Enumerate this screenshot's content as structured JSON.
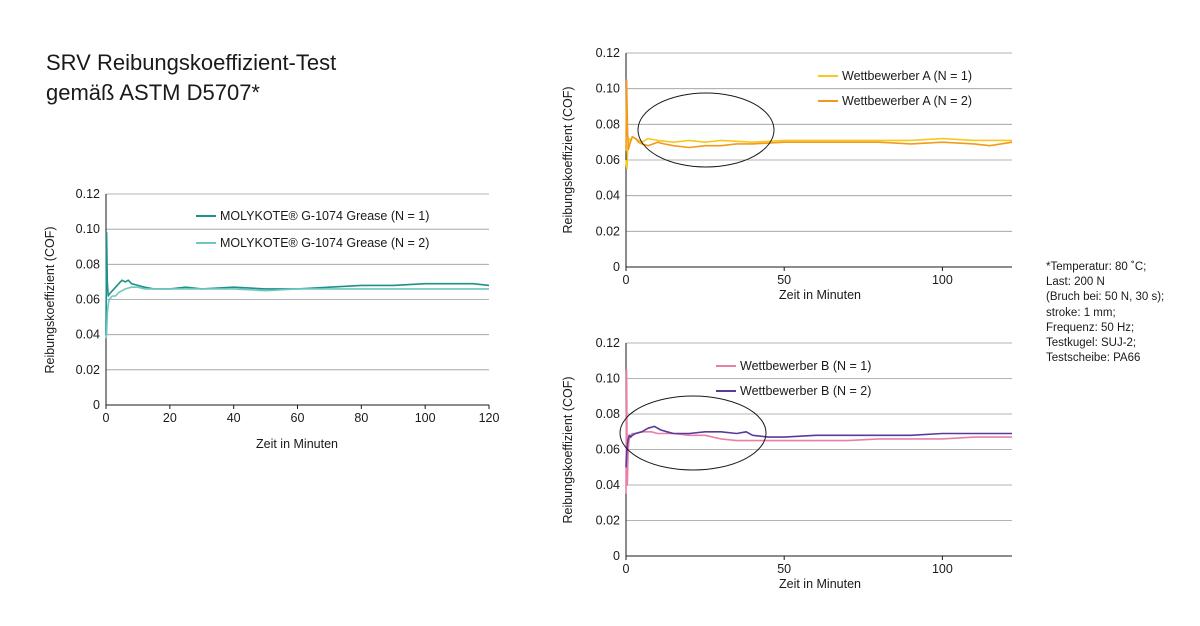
{
  "title": {
    "line1": "SRV Reibungskoeffizient-Test",
    "line2": "gemäß ASTM D5707*"
  },
  "conditions": [
    "*Temperatur: 80 ˚C;",
    "Last: 200 N",
    "(Bruch bei: 50 N, 30 s);",
    "stroke: 1 mm;",
    "Frequenz: 50 Hz;",
    "Testkugel: SUJ-2;",
    "Testscheibe: PA66"
  ],
  "chart_data": [
    {
      "type": "line",
      "xlabel": "Zeit in Minuten",
      "ylabel": "Reibungskoeffizient (COF)",
      "xlim": [
        0,
        120
      ],
      "ylim": [
        0,
        0.12
      ],
      "xticks": [
        0,
        20,
        40,
        60,
        80,
        100,
        120
      ],
      "yticks": [
        0,
        0.02,
        0.04,
        0.06,
        0.08,
        0.1,
        0.12
      ],
      "grid": "horizontal",
      "legend_position": "top-right",
      "series": [
        {
          "name": "MOLYKOTE® G-1074 Grease (N = 1)",
          "color": "#1e9188",
          "x": [
            0,
            0.2,
            0.4,
            0.7,
            1,
            1.5,
            2,
            3,
            4,
            5,
            6,
            7,
            8,
            10,
            12,
            15,
            20,
            25,
            30,
            40,
            50,
            60,
            70,
            80,
            90,
            100,
            110,
            115,
            120
          ],
          "y": [
            0.04,
            0.098,
            0.07,
            0.062,
            0.063,
            0.064,
            0.065,
            0.067,
            0.069,
            0.071,
            0.07,
            0.071,
            0.069,
            0.068,
            0.067,
            0.066,
            0.066,
            0.067,
            0.066,
            0.067,
            0.066,
            0.066,
            0.067,
            0.068,
            0.068,
            0.069,
            0.069,
            0.069,
            0.068
          ]
        },
        {
          "name": "MOLYKOTE® G-1074 Grease (N = 2)",
          "color": "#6fc7bf",
          "x": [
            0,
            0.2,
            0.4,
            0.7,
            1,
            1.5,
            2,
            3,
            4,
            5,
            6,
            8,
            10,
            12,
            15,
            20,
            25,
            30,
            40,
            50,
            60,
            70,
            80,
            90,
            100,
            110,
            120
          ],
          "y": [
            0.038,
            0.04,
            0.052,
            0.057,
            0.06,
            0.061,
            0.062,
            0.062,
            0.064,
            0.065,
            0.066,
            0.067,
            0.067,
            0.066,
            0.066,
            0.066,
            0.066,
            0.066,
            0.066,
            0.065,
            0.066,
            0.066,
            0.066,
            0.066,
            0.066,
            0.066,
            0.066
          ]
        }
      ]
    },
    {
      "type": "line",
      "xlabel": "Zeit in Minuten",
      "ylabel": "Reibungskoeffizient  (COF)",
      "xlim": [
        0,
        122
      ],
      "ylim": [
        0,
        0.12
      ],
      "xticks": [
        0,
        50,
        100
      ],
      "yticks": [
        0,
        0.02,
        0.04,
        0.06,
        0.08,
        0.1,
        0.12
      ],
      "grid": "horizontal",
      "legend_position": "top-right",
      "annotation": "ellipse",
      "series": [
        {
          "name": "Wettbewerber A (N = 1)",
          "color": "#f7c81e",
          "x": [
            0,
            0.3,
            0.6,
            1,
            1.5,
            2,
            3,
            4,
            5,
            7,
            10,
            15,
            20,
            25,
            30,
            40,
            50,
            60,
            70,
            80,
            90,
            100,
            110,
            115,
            122
          ],
          "y": [
            0.06,
            0.055,
            0.068,
            0.072,
            0.071,
            0.073,
            0.072,
            0.071,
            0.07,
            0.072,
            0.071,
            0.07,
            0.071,
            0.07,
            0.071,
            0.07,
            0.071,
            0.071,
            0.071,
            0.071,
            0.071,
            0.072,
            0.071,
            0.071,
            0.071
          ]
        },
        {
          "name": "Wettbewerber A (N = 2)",
          "color": "#f29a1d",
          "x": [
            0,
            0.2,
            0.5,
            0.8,
            1.2,
            2,
            3,
            4,
            5,
            7,
            10,
            12,
            15,
            20,
            25,
            30,
            35,
            40,
            50,
            60,
            70,
            80,
            90,
            100,
            110,
            115,
            122
          ],
          "y": [
            0.065,
            0.105,
            0.075,
            0.066,
            0.069,
            0.073,
            0.072,
            0.07,
            0.069,
            0.068,
            0.07,
            0.069,
            0.068,
            0.067,
            0.068,
            0.068,
            0.069,
            0.069,
            0.07,
            0.07,
            0.07,
            0.07,
            0.069,
            0.07,
            0.069,
            0.068,
            0.07
          ]
        }
      ]
    },
    {
      "type": "line",
      "xlabel": "Zeit in Minuten",
      "ylabel": "Reibungskoeffizient  (COF)",
      "xlim": [
        0,
        122
      ],
      "ylim": [
        0,
        0.12
      ],
      "xticks": [
        0,
        50,
        100
      ],
      "yticks": [
        0,
        0.02,
        0.04,
        0.06,
        0.08,
        0.1,
        0.12
      ],
      "grid": "horizontal",
      "legend_position": "top-right",
      "annotation": "ellipse",
      "series": [
        {
          "name": "Wettbewerber B (N = 1)",
          "color": "#e87fa8",
          "x": [
            0,
            0.2,
            0.4,
            0.7,
            1,
            1.5,
            2,
            3,
            5,
            8,
            10,
            15,
            20,
            25,
            30,
            35,
            40,
            45,
            50,
            60,
            70,
            80,
            90,
            100,
            110,
            122
          ],
          "y": [
            0.035,
            0.105,
            0.04,
            0.06,
            0.066,
            0.068,
            0.069,
            0.069,
            0.07,
            0.07,
            0.069,
            0.069,
            0.068,
            0.068,
            0.066,
            0.065,
            0.065,
            0.065,
            0.065,
            0.065,
            0.065,
            0.066,
            0.066,
            0.066,
            0.067,
            0.067
          ]
        },
        {
          "name": "Wettbewerber B (N = 2)",
          "color": "#5a3a9a",
          "x": [
            0,
            0.3,
            0.6,
            1,
            1.5,
            2,
            3,
            5,
            7,
            9,
            11,
            13,
            15,
            20,
            25,
            30,
            35,
            38,
            40,
            45,
            50,
            60,
            70,
            80,
            90,
            100,
            110,
            122
          ],
          "y": [
            0.05,
            0.06,
            0.065,
            0.068,
            0.067,
            0.068,
            0.069,
            0.07,
            0.072,
            0.073,
            0.071,
            0.07,
            0.069,
            0.069,
            0.07,
            0.07,
            0.069,
            0.07,
            0.068,
            0.067,
            0.067,
            0.068,
            0.068,
            0.068,
            0.068,
            0.069,
            0.069,
            0.069
          ]
        }
      ]
    }
  ]
}
